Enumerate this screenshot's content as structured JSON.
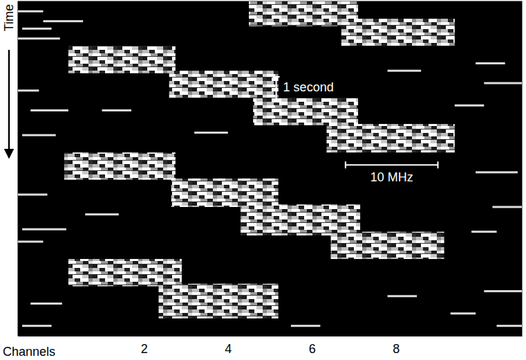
{
  "chart_data": {
    "type": "spectrogram",
    "x_label": "Channels",
    "y_label": "Time",
    "xlim": [
      -1,
      11
    ],
    "xticks": [
      2,
      4,
      6,
      8
    ],
    "ylim": [
      0,
      13.5
    ],
    "tick_labels": "x",
    "bursts": [
      {
        "channels": [
          4.5,
          7.1
        ],
        "time": [
          0.0,
          1.0
        ]
      },
      {
        "channels": [
          6.7,
          9.4
        ],
        "time": [
          0.7,
          1.8
        ]
      },
      {
        "channels": [
          0.2,
          2.75
        ],
        "time": [
          1.8,
          2.9
        ]
      },
      {
        "channels": [
          2.6,
          5.2
        ],
        "time": [
          2.8,
          3.9
        ]
      },
      {
        "channels": [
          4.6,
          7.1
        ],
        "time": [
          3.9,
          5.0
        ]
      },
      {
        "channels": [
          6.35,
          9.4
        ],
        "time": [
          4.95,
          6.1
        ]
      },
      {
        "channels": [
          0.1,
          2.75
        ],
        "time": [
          6.1,
          7.2
        ]
      },
      {
        "channels": [
          2.65,
          5.2
        ],
        "time": [
          7.15,
          8.3
        ]
      },
      {
        "channels": [
          4.3,
          7.15
        ],
        "time": [
          8.2,
          9.45
        ]
      },
      {
        "channels": [
          6.45,
          9.15
        ],
        "time": [
          9.3,
          10.4
        ]
      },
      {
        "channels": [
          0.2,
          2.9
        ],
        "time": [
          10.4,
          11.5
        ]
      },
      {
        "channels": [
          2.35,
          5.2
        ],
        "time": [
          11.4,
          12.8
        ]
      }
    ],
    "noise": [
      [
        -1.0,
        -0.4,
        0.4
      ],
      [
        -0.9,
        -0.2,
        1.1
      ],
      [
        -1.0,
        0.0,
        1.5
      ],
      [
        -0.4,
        0.55,
        0.8
      ],
      [
        -1.0,
        -0.5,
        3.6
      ],
      [
        -0.7,
        0.2,
        4.4
      ],
      [
        -0.9,
        -0.1,
        5.4
      ],
      [
        -1.0,
        -0.3,
        7.8
      ],
      [
        -0.9,
        0.15,
        9.2
      ],
      [
        -1.0,
        -0.4,
        9.7
      ],
      [
        -0.7,
        0.05,
        12.2
      ],
      [
        -0.9,
        -0.2,
        13.1
      ],
      [
        9.9,
        10.6,
        2.5
      ],
      [
        10.1,
        11.0,
        3.3
      ],
      [
        9.4,
        10.1,
        4.2
      ],
      [
        9.9,
        10.9,
        6.9
      ],
      [
        10.3,
        11.0,
        8.3
      ],
      [
        9.8,
        10.4,
        9.3
      ],
      [
        10.1,
        11.0,
        11.7
      ],
      [
        9.3,
        9.9,
        12.6
      ],
      [
        10.4,
        11.0,
        13.1
      ],
      [
        1.0,
        1.7,
        4.4
      ],
      [
        3.2,
        4.0,
        5.3
      ],
      [
        7.8,
        8.6,
        2.8
      ],
      [
        0.6,
        1.4,
        8.6
      ],
      [
        7.8,
        8.5,
        11.9
      ],
      [
        5.5,
        6.2,
        13.1
      ]
    ],
    "annotations": [
      {
        "text": "1 second",
        "channel": 5.15,
        "time": [
          3.05,
          4.05
        ]
      },
      {
        "text": "10 MHz",
        "channels": [
          6.8,
          9.0
        ],
        "time": 6.6
      }
    ]
  }
}
